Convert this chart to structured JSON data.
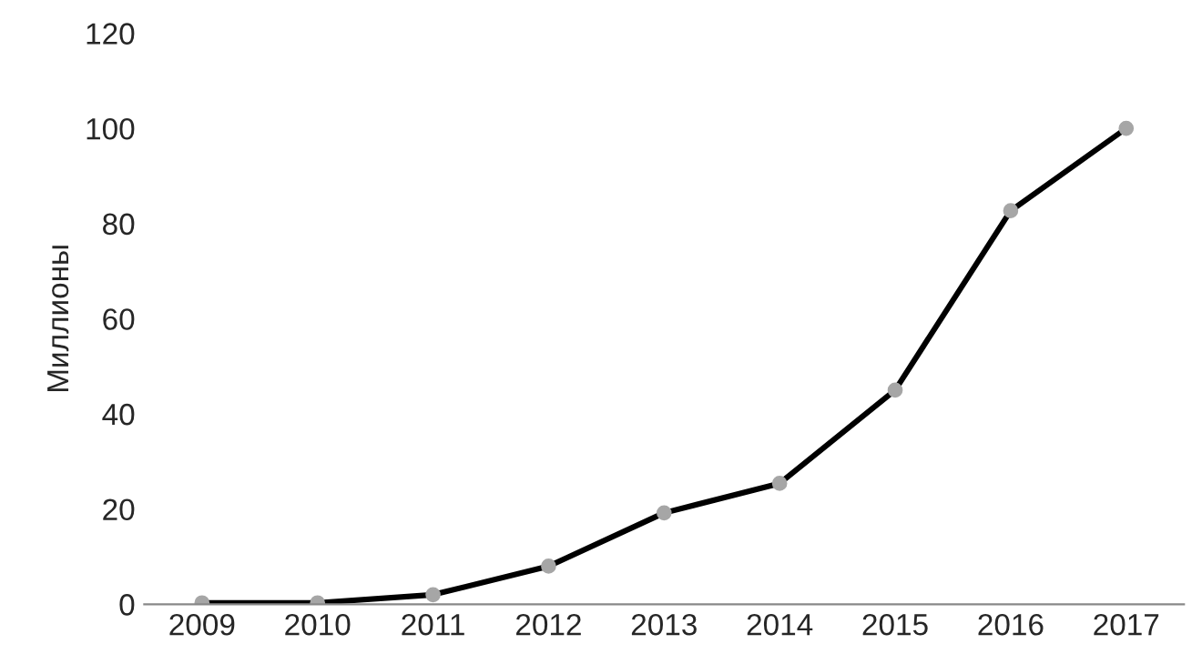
{
  "chart_data": {
    "type": "line",
    "ylabel": "Миллионы",
    "categories": [
      "2009",
      "2010",
      "2011",
      "2012",
      "2013",
      "2014",
      "2015",
      "2016",
      "2017"
    ],
    "series": [
      {
        "color": "#000000",
        "values": [
          0.3,
          0.3,
          2,
          8,
          19.2,
          25.4,
          45,
          82.7,
          100
        ]
      }
    ],
    "ylim": [
      0,
      120
    ],
    "yticks": [
      0,
      20,
      40,
      60,
      80,
      100,
      120
    ],
    "grid": false,
    "marker": "circle",
    "line_style": "solid"
  }
}
